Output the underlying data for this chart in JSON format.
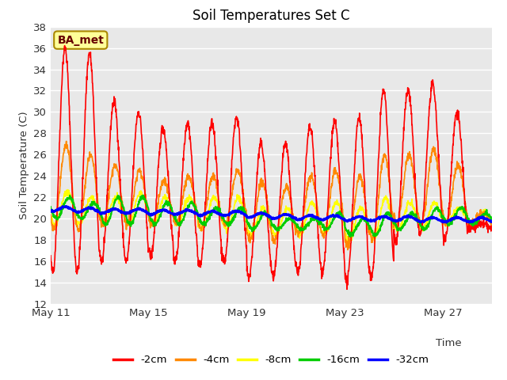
{
  "title": "Soil Temperatures Set C",
  "xlabel": "Time",
  "ylabel": "Soil Temperature (C)",
  "ylim": [
    12,
    38
  ],
  "yticks": [
    12,
    14,
    16,
    18,
    20,
    22,
    24,
    26,
    28,
    30,
    32,
    34,
    36,
    38
  ],
  "xtick_positions": [
    0,
    4,
    8,
    12,
    16
  ],
  "xtick_labels": [
    "May 11",
    "May 15",
    "May 19",
    "May 23",
    "May 27"
  ],
  "fig_bg_color": "#ffffff",
  "plot_bg_color": "#e8e8e8",
  "annotation_text": "BA_met",
  "annotation_fg": "#660000",
  "annotation_bg": "#ffff99",
  "annotation_border": "#aa8800",
  "line_colors": {
    "-2cm": "#ff0000",
    "-4cm": "#ff8800",
    "-8cm": "#ffff00",
    "-16cm": "#00cc00",
    "-32cm": "#0000ff"
  },
  "line_widths": {
    "-2cm": 1.2,
    "-4cm": 1.2,
    "-8cm": 1.2,
    "-16cm": 1.5,
    "-32cm": 2.0
  },
  "legend_entries": [
    "-2cm",
    "-4cm",
    "-8cm",
    "-16cm",
    "-32cm"
  ],
  "n_days": 18,
  "points_per_hour": 4,
  "start_day": 11
}
